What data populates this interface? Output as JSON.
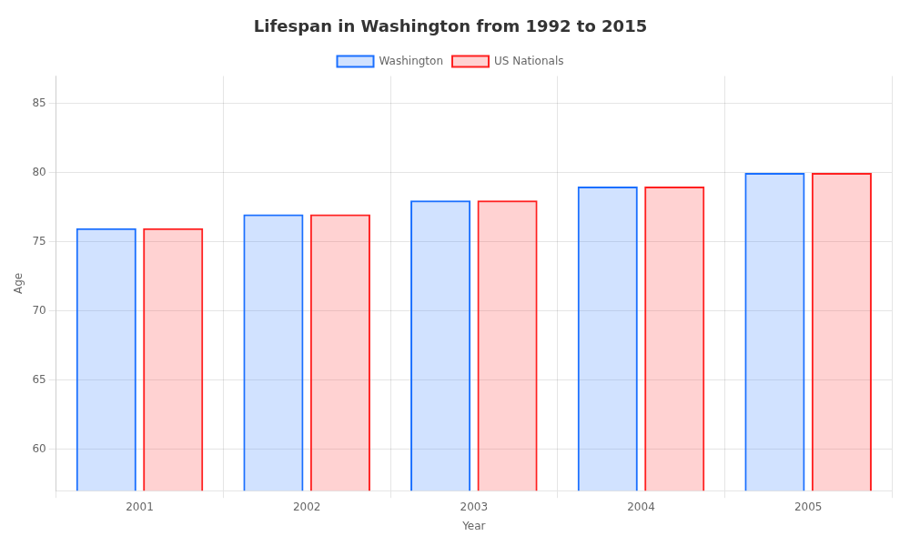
{
  "chart_data": {
    "type": "bar",
    "title": "Lifespan in Washington from 1992 to 2015",
    "x_label": "Year",
    "y_label": "Age",
    "categories": [
      "2001",
      "2002",
      "2003",
      "2004",
      "2005"
    ],
    "series": [
      {
        "name": "Washington",
        "color": "#1a6fff",
        "values": [
          76,
          77,
          78,
          79,
          80
        ]
      },
      {
        "name": "US Nationals",
        "color": "#ff2020",
        "values": [
          76,
          77,
          78,
          79,
          80
        ]
      }
    ],
    "ylim": [
      57,
      87
    ],
    "yticks": [
      60,
      65,
      70,
      75,
      80,
      85
    ],
    "grid": true,
    "legend": "top"
  }
}
